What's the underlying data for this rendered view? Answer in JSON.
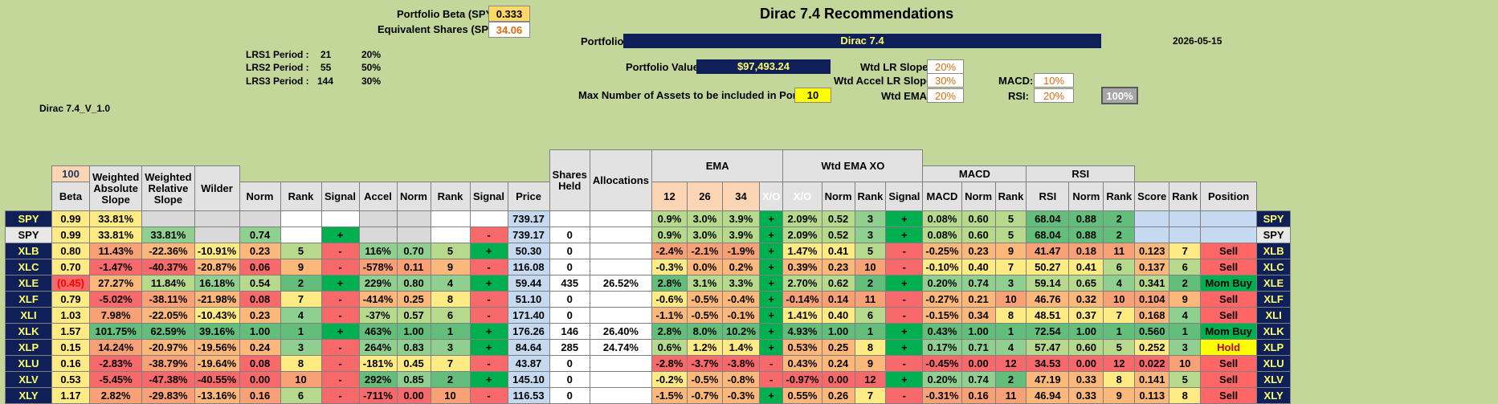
{
  "top": {
    "beta_label": "Portfolio Beta (SPY):",
    "beta_value": "0.333",
    "shares_label": "Equivalent Shares (SPY):",
    "shares_value": "34.06",
    "title": "Dirac 7.4 Recommendations",
    "portfolio_label": "Portfolio:",
    "portfolio_value": "Dirac 7.4",
    "date": "2026-05-15",
    "lrs1_label": "LRS1 Period :",
    "lrs1_period": "21",
    "lrs1_pct": "20%",
    "lrs2_label": "LRS2 Period :",
    "lrs2_period": "55",
    "lrs2_pct": "50%",
    "lrs3_label": "LRS3 Period :",
    "lrs3_period": "144",
    "lrs3_pct": "30%",
    "version": "Dirac 7.4_V_1.0",
    "pv_label": "Portfolio Value:",
    "pv_value": "$97,493.24",
    "max_label": "Max Number of Assets to be included in Portfolio:",
    "max_value": "10",
    "wtd_lr_label": "Wtd LR Slope:",
    "wtd_lr_value": "20%",
    "wtd_accel_label": "Wtd Accel LR Slope:",
    "wtd_accel_value": "30%",
    "wtd_ema_label": "Wtd EMA:",
    "wtd_ema_value": "20%",
    "macd_label": "MACD:",
    "macd_value": "10%",
    "rsi_label": "RSI:",
    "rsi_value": "20%",
    "total_value": "100%"
  },
  "headers": {
    "hundred": "100",
    "beta": "Beta",
    "was": "Weighted Absolute Slope",
    "wrs": "Weighted Relative Slope",
    "wilder": "Wilder",
    "norm": "Norm",
    "rank": "Rank",
    "signal": "Signal",
    "accel": "Accel",
    "norm2": "Norm",
    "rank2": "Rank",
    "signal2": "Signal",
    "price": "Price",
    "shares": "Shares Held",
    "alloc": "Allocations",
    "ema": "EMA",
    "ema12": "12",
    "ema26": "26",
    "ema34": "34",
    "xo": "X/O",
    "wtdxo": "Wtd EMA XO",
    "xo2": "X/O",
    "norm3": "Norm",
    "rank3": "Rank",
    "signal3": "Signal",
    "macd_group": "MACD",
    "macd": "MACD",
    "norm4": "Norm",
    "rank4": "Rank",
    "rsi_group": "RSI",
    "rsi": "RSI",
    "norm5": "Norm",
    "rank5": "Rank",
    "score": "Score",
    "rank6": "Rank",
    "position": "Position"
  },
  "rows": [
    {
      "t": "SPY",
      "beta": "0.99",
      "was": "33.81%",
      "wrs": "",
      "wil": "",
      "n1": "",
      "r1": "",
      "s1": "",
      "acc": "",
      "n2": "",
      "r2": "",
      "s2": "",
      "price": "739.17",
      "sh": "",
      "al": "",
      "e12": "0.9%",
      "e26": "3.0%",
      "e34": "3.9%",
      "xo": "+",
      "wx": "2.09%",
      "n3": "0.52",
      "r3": "3",
      "s3": "+",
      "macd": "0.08%",
      "n4": "0.60",
      "r4": "5",
      "rsi": "68.04",
      "n5": "0.88",
      "r5": "2",
      "sc": "",
      "r6": "",
      "pos": ""
    },
    {
      "t": "SPY",
      "beta": "0.99",
      "was": "33.81%",
      "wrs": "33.81%",
      "wil": "",
      "n1": "0.74",
      "r1": "",
      "s1": "+",
      "acc": "",
      "n2": "",
      "r2": "",
      "s2": "-",
      "price": "739.17",
      "sh": "0",
      "al": "",
      "e12": "0.9%",
      "e26": "3.0%",
      "e34": "3.9%",
      "xo": "+",
      "wx": "2.09%",
      "n3": "0.52",
      "r3": "3",
      "s3": "+",
      "macd": "0.08%",
      "n4": "0.60",
      "r4": "5",
      "rsi": "68.04",
      "n5": "0.88",
      "r5": "2",
      "sc": "",
      "r6": "",
      "pos": ""
    },
    {
      "t": "XLB",
      "beta": "0.80",
      "was": "11.43%",
      "wrs": "-22.36%",
      "wil": "-10.91%",
      "n1": "0.23",
      "r1": "5",
      "s1": "-",
      "acc": "116%",
      "n2": "0.70",
      "r2": "5",
      "s2": "+",
      "price": "50.30",
      "sh": "0",
      "al": "",
      "e12": "-2.4%",
      "e26": "-2.1%",
      "e34": "-1.9%",
      "xo": "+",
      "wx": "1.47%",
      "n3": "0.41",
      "r3": "5",
      "s3": "-",
      "macd": "-0.25%",
      "n4": "0.23",
      "r4": "9",
      "rsi": "41.47",
      "n5": "0.18",
      "r5": "11",
      "sc": "0.123",
      "r6": "7",
      "pos": "Sell"
    },
    {
      "t": "XLC",
      "beta": "0.70",
      "was": "-1.47%",
      "wrs": "-40.37%",
      "wil": "-20.87%",
      "n1": "0.06",
      "r1": "9",
      "s1": "-",
      "acc": "-578%",
      "n2": "0.11",
      "r2": "9",
      "s2": "-",
      "price": "116.08",
      "sh": "0",
      "al": "",
      "e12": "-0.3%",
      "e26": "0.0%",
      "e34": "0.2%",
      "xo": "+",
      "wx": "0.39%",
      "n3": "0.23",
      "r3": "10",
      "s3": "-",
      "macd": "-0.10%",
      "n4": "0.40",
      "r4": "7",
      "rsi": "50.27",
      "n5": "0.41",
      "r5": "6",
      "sc": "0.137",
      "r6": "6",
      "pos": "Sell"
    },
    {
      "t": "XLE",
      "beta": "(0.45)",
      "was": "27.27%",
      "wrs": "11.84%",
      "wil": "16.18%",
      "n1": "0.54",
      "r1": "2",
      "s1": "+",
      "acc": "229%",
      "n2": "0.80",
      "r2": "4",
      "s2": "+",
      "price": "59.44",
      "sh": "435",
      "al": "26.52%",
      "e12": "2.8%",
      "e26": "3.1%",
      "e34": "3.3%",
      "xo": "+",
      "wx": "2.70%",
      "n3": "0.62",
      "r3": "2",
      "s3": "+",
      "macd": "0.20%",
      "n4": "0.74",
      "r4": "3",
      "rsi": "59.14",
      "n5": "0.65",
      "r5": "4",
      "sc": "0.341",
      "r6": "2",
      "pos": "Mom Buy"
    },
    {
      "t": "XLF",
      "beta": "0.79",
      "was": "-5.02%",
      "wrs": "-38.11%",
      "wil": "-21.98%",
      "n1": "0.08",
      "r1": "7",
      "s1": "-",
      "acc": "-414%",
      "n2": "0.25",
      "r2": "8",
      "s2": "-",
      "price": "51.10",
      "sh": "0",
      "al": "",
      "e12": "-0.6%",
      "e26": "-0.5%",
      "e34": "-0.4%",
      "xo": "+",
      "wx": "-0.14%",
      "n3": "0.14",
      "r3": "11",
      "s3": "-",
      "macd": "-0.27%",
      "n4": "0.21",
      "r4": "10",
      "rsi": "46.76",
      "n5": "0.32",
      "r5": "10",
      "sc": "0.104",
      "r6": "9",
      "pos": "Sell"
    },
    {
      "t": "XLI",
      "beta": "1.03",
      "was": "7.98%",
      "wrs": "-22.05%",
      "wil": "-10.43%",
      "n1": "0.23",
      "r1": "4",
      "s1": "-",
      "acc": "-37%",
      "n2": "0.57",
      "r2": "6",
      "s2": "-",
      "price": "171.40",
      "sh": "0",
      "al": "",
      "e12": "-1.1%",
      "e26": "-0.5%",
      "e34": "-0.1%",
      "xo": "+",
      "wx": "1.41%",
      "n3": "0.40",
      "r3": "6",
      "s3": "-",
      "macd": "-0.15%",
      "n4": "0.34",
      "r4": "8",
      "rsi": "48.51",
      "n5": "0.37",
      "r5": "7",
      "sc": "0.168",
      "r6": "4",
      "pos": "Sell"
    },
    {
      "t": "XLK",
      "beta": "1.57",
      "was": "101.75%",
      "wrs": "62.59%",
      "wil": "39.16%",
      "n1": "1.00",
      "r1": "1",
      "s1": "+",
      "acc": "463%",
      "n2": "1.00",
      "r2": "1",
      "s2": "+",
      "price": "176.26",
      "sh": "146",
      "al": "26.40%",
      "e12": "2.8%",
      "e26": "8.0%",
      "e34": "10.2%",
      "xo": "+",
      "wx": "4.93%",
      "n3": "1.00",
      "r3": "1",
      "s3": "+",
      "macd": "0.43%",
      "n4": "1.00",
      "r4": "1",
      "rsi": "72.54",
      "n5": "1.00",
      "r5": "1",
      "sc": "0.560",
      "r6": "1",
      "pos": "Mom Buy"
    },
    {
      "t": "XLP",
      "beta": "0.15",
      "was": "14.24%",
      "wrs": "-20.97%",
      "wil": "-19.56%",
      "n1": "0.24",
      "r1": "3",
      "s1": "-",
      "acc": "264%",
      "n2": "0.83",
      "r2": "3",
      "s2": "+",
      "price": "84.64",
      "sh": "285",
      "al": "24.74%",
      "e12": "0.6%",
      "e26": "1.2%",
      "e34": "1.4%",
      "xo": "+",
      "wx": "0.53%",
      "n3": "0.25",
      "r3": "8",
      "s3": "+",
      "macd": "0.17%",
      "n4": "0.71",
      "r4": "4",
      "rsi": "57.47",
      "n5": "0.60",
      "r5": "5",
      "sc": "0.252",
      "r6": "3",
      "pos": "Hold"
    },
    {
      "t": "XLU",
      "beta": "0.16",
      "was": "-2.83%",
      "wrs": "-38.79%",
      "wil": "-19.64%",
      "n1": "0.08",
      "r1": "8",
      "s1": "-",
      "acc": "-181%",
      "n2": "0.45",
      "r2": "7",
      "s2": "-",
      "price": "43.87",
      "sh": "0",
      "al": "",
      "e12": "-2.8%",
      "e26": "-3.7%",
      "e34": "-3.8%",
      "xo": "-",
      "wx": "0.43%",
      "n3": "0.24",
      "r3": "9",
      "s3": "-",
      "macd": "-0.45%",
      "n4": "0.00",
      "r4": "12",
      "rsi": "34.53",
      "n5": "0.00",
      "r5": "12",
      "sc": "0.022",
      "r6": "10",
      "pos": "Sell"
    },
    {
      "t": "XLV",
      "beta": "0.53",
      "was": "-5.45%",
      "wrs": "-47.38%",
      "wil": "-40.55%",
      "n1": "0.00",
      "r1": "10",
      "s1": "-",
      "acc": "292%",
      "n2": "0.85",
      "r2": "2",
      "s2": "+",
      "price": "145.10",
      "sh": "0",
      "al": "",
      "e12": "-0.2%",
      "e26": "-0.5%",
      "e34": "-0.8%",
      "xo": "-",
      "wx": "-0.97%",
      "n3": "0.00",
      "r3": "12",
      "s3": "+",
      "macd": "0.20%",
      "n4": "0.74",
      "r4": "2",
      "rsi": "47.19",
      "n5": "0.33",
      "r5": "8",
      "sc": "0.141",
      "r6": "5",
      "pos": "Sell"
    },
    {
      "t": "XLY",
      "beta": "1.17",
      "was": "2.82%",
      "wrs": "-29.83%",
      "wil": "-13.16%",
      "n1": "0.16",
      "r1": "6",
      "s1": "-",
      "acc": "-711%",
      "n2": "0.00",
      "r2": "10",
      "s2": "-",
      "price": "116.53",
      "sh": "0",
      "al": "",
      "e12": "-1.5%",
      "e26": "-0.7%",
      "e34": "-0.3%",
      "xo": "+",
      "wx": "0.55%",
      "n3": "0.26",
      "r3": "7",
      "s3": "-",
      "macd": "-0.31%",
      "n4": "0.16",
      "r4": "11",
      "rsi": "46.94",
      "n5": "0.33",
      "r5": "9",
      "sc": "0.113",
      "r6": "8",
      "pos": "Sell"
    }
  ]
}
